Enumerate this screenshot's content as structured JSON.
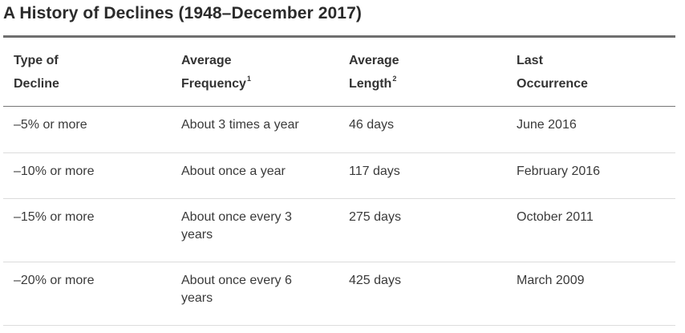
{
  "title": "A History of Declines (1948–December 2017)",
  "table": {
    "headers": {
      "type_line1": "Type of",
      "type_line2": "Decline",
      "freq_line1": "Average",
      "freq_line2": "Frequency",
      "freq_note": "1",
      "length_line1": "Average",
      "length_line2": "Length",
      "length_note": "2",
      "last_line1": "Last",
      "last_line2": "Occurrence"
    },
    "rows": [
      {
        "type": "–5% or more",
        "frequency": "About 3 times a year",
        "length": "46 days",
        "last": "June 2016"
      },
      {
        "type": "–10% or more",
        "frequency": "About once a year",
        "length": "117 days",
        "last": "February 2016"
      },
      {
        "type": "–15% or more",
        "frequency": "About once every 3 years",
        "length": "275 days",
        "last": "October 2011"
      },
      {
        "type": "–20% or more",
        "frequency": "About once every 6 years",
        "length": "425 days",
        "last": "March 2009"
      }
    ]
  }
}
